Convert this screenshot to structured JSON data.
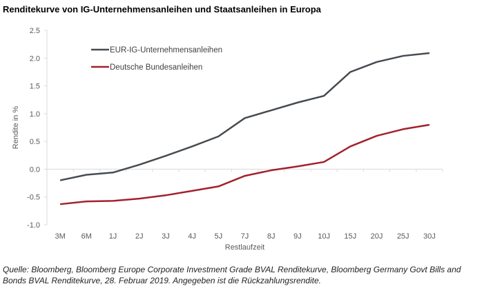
{
  "title": "Renditekurve von IG-Unternehmensanleihen und Staatsanleihen in Europa",
  "caption": "Quelle: Bloomberg, Bloomberg Europe Corporate Investment Grade BVAL Renditekurve, Bloomberg Germany Govt Bills and Bonds BVAL Renditekurve, 28. Februar 2019. Angegeben ist die Rückzahlungsrendite.",
  "chart_data": {
    "type": "line",
    "title": "Renditekurve von IG-Unternehmensanleihen und Staatsanleihen in Europa",
    "xlabel": "Restlaufzeit",
    "ylabel": "Rendite in %",
    "ylim": [
      -1.0,
      2.5
    ],
    "yticks": [
      "2.5",
      "2.0",
      "1.5",
      "1.0",
      "0.5",
      "0.0",
      "-0.5",
      "-1.0"
    ],
    "categories": [
      "3M",
      "6M",
      "1J",
      "2J",
      "3J",
      "4J",
      "5J",
      "7J",
      "8J",
      "9J",
      "10J",
      "15J",
      "20J",
      "25J",
      "30J"
    ],
    "legend_position": "top-left",
    "series": [
      {
        "name": "EUR-IG-Unternehmensanleihen",
        "color": "#454b50",
        "values": [
          -0.2,
          -0.1,
          -0.06,
          0.08,
          0.24,
          0.41,
          0.59,
          0.92,
          1.06,
          1.2,
          1.32,
          1.75,
          1.93,
          2.04,
          2.09
        ]
      },
      {
        "name": "Deutsche Bundesanleihen",
        "color": "#a3202c",
        "values": [
          -0.63,
          -0.58,
          -0.57,
          -0.53,
          -0.47,
          -0.39,
          -0.31,
          -0.12,
          -0.02,
          0.05,
          0.13,
          0.41,
          0.6,
          0.72,
          0.8
        ]
      }
    ]
  }
}
